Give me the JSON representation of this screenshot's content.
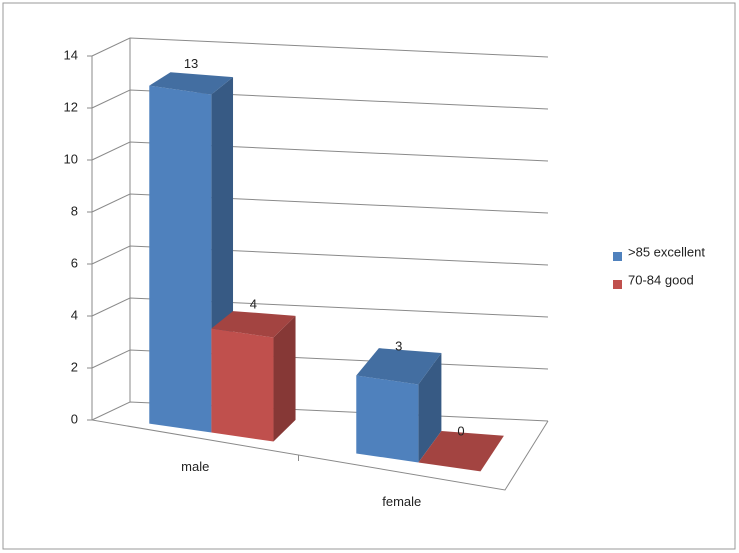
{
  "chart_data": {
    "type": "bar3d",
    "categories": [
      "male",
      "female"
    ],
    "series": [
      {
        "name": ">85 excellent",
        "color": "#4f81bd",
        "values": [
          13,
          3
        ]
      },
      {
        "name": "70-84 good",
        "color": "#c0504d",
        "values": [
          4,
          0
        ]
      }
    ],
    "ylim": [
      0,
      14
    ],
    "yticks": [
      0,
      2,
      4,
      6,
      8,
      10,
      12,
      14
    ],
    "grid": true,
    "legend": "right"
  }
}
